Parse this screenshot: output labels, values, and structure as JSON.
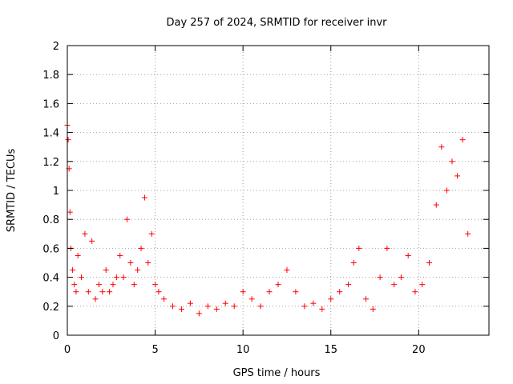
{
  "chart_data": {
    "type": "scatter",
    "title": "Day 257 of 2024, SRMTID for receiver invr",
    "xlabel": "GPS time / hours",
    "ylabel": "SRMTID / TECUs",
    "xlim": [
      0,
      24
    ],
    "ylim": [
      0,
      2
    ],
    "xticks": [
      0,
      5,
      10,
      15,
      20
    ],
    "xtick_labels": [
      "0",
      "5",
      "10",
      "15",
      "20"
    ],
    "yticks": [
      0,
      0.2,
      0.4,
      0.6,
      0.8,
      1,
      1.2,
      1.4,
      1.6,
      1.8,
      2
    ],
    "ytick_labels": [
      "0",
      "0.2",
      "0.4",
      "0.6",
      "0.8",
      "1",
      "1.2",
      "1.4",
      "1.6",
      "1.8",
      "2"
    ],
    "grid": true,
    "marker": "+",
    "marker_color": "#ff0000",
    "grid_color": "#a0a0a0",
    "series": [
      {
        "name": "SRMTID",
        "x": [
          0.0,
          0.05,
          0.1,
          0.15,
          0.2,
          0.3,
          0.4,
          0.5,
          0.6,
          0.8,
          1.0,
          1.2,
          1.4,
          1.6,
          1.8,
          2.0,
          2.2,
          2.4,
          2.6,
          2.8,
          3.0,
          3.2,
          3.4,
          3.6,
          3.8,
          4.0,
          4.2,
          4.4,
          4.6,
          4.8,
          5.0,
          5.2,
          5.5,
          6.0,
          6.5,
          7.0,
          7.5,
          8.0,
          8.5,
          9.0,
          9.5,
          10.0,
          10.5,
          11.0,
          11.5,
          12.0,
          12.5,
          13.0,
          13.5,
          14.0,
          14.5,
          15.0,
          15.5,
          16.0,
          16.3,
          16.6,
          17.0,
          17.4,
          17.8,
          18.2,
          18.6,
          19.0,
          19.4,
          19.8,
          20.2,
          20.6,
          21.0,
          21.3,
          21.6,
          21.9,
          22.2,
          22.5,
          22.8
        ],
        "y": [
          1.45,
          1.35,
          1.15,
          0.85,
          0.6,
          0.45,
          0.35,
          0.3,
          0.55,
          0.4,
          0.7,
          0.3,
          0.65,
          0.25,
          0.35,
          0.3,
          0.45,
          0.3,
          0.35,
          0.4,
          0.55,
          0.4,
          0.8,
          0.5,
          0.35,
          0.45,
          0.6,
          0.95,
          0.5,
          0.7,
          0.35,
          0.3,
          0.25,
          0.2,
          0.18,
          0.22,
          0.15,
          0.2,
          0.18,
          0.22,
          0.2,
          0.3,
          0.25,
          0.2,
          0.3,
          0.35,
          0.45,
          0.3,
          0.2,
          0.22,
          0.18,
          0.25,
          0.3,
          0.35,
          0.5,
          0.6,
          0.25,
          0.18,
          0.4,
          0.6,
          0.35,
          0.4,
          0.55,
          0.3,
          0.35,
          0.5,
          0.9,
          1.3,
          1.0,
          1.2,
          1.1,
          1.35,
          0.7
        ]
      }
    ]
  }
}
